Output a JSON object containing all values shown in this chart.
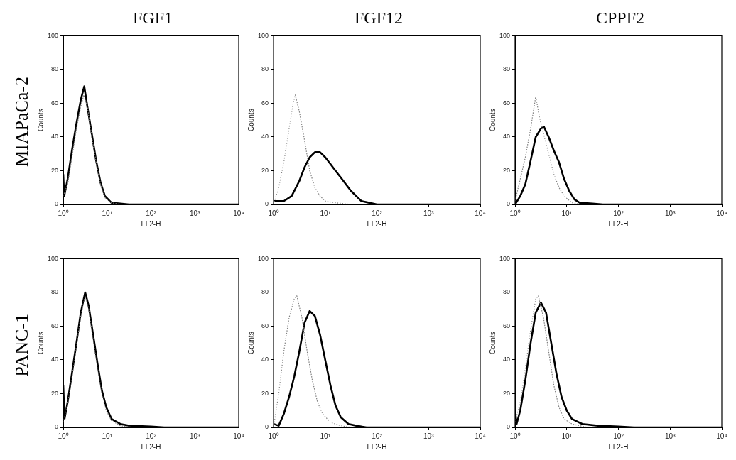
{
  "chart_data": [
    {
      "type": "line",
      "title": "FGF1",
      "annotations": [
        "MIAPaCa-2"
      ],
      "xlabel": "FL2-H",
      "ylabel": "Counts",
      "log": "x",
      "grid": false,
      "marker": "none",
      "xlim": [
        1,
        10000
      ],
      "xticks": [
        {
          "value": 1,
          "label": "10⁰"
        },
        {
          "value": 10,
          "label": "10¹"
        },
        {
          "value": 100,
          "label": "10²"
        },
        {
          "value": 1000,
          "label": "10³"
        },
        {
          "value": 10000,
          "label": "10⁴"
        }
      ],
      "ylim": [
        0,
        100
      ],
      "yticks": [
        0,
        20,
        40,
        60,
        80,
        100
      ],
      "series": [
        {
          "color": "#808080",
          "line_style": "dotted",
          "x": [
            1,
            1.26,
            1.58,
            2.0,
            2.51,
            2.95,
            3.55,
            4.47,
            5.62,
            7.08,
            8.91,
            12.6,
            20,
            10000
          ],
          "values": [
            5,
            12,
            28,
            45,
            58,
            65,
            58,
            40,
            25,
            12,
            4,
            1,
            0,
            0
          ]
        },
        {
          "color": "#000000",
          "line_style": "solid",
          "x": [
            1,
            1.05,
            1.26,
            1.58,
            2.0,
            2.51,
            3.02,
            3.55,
            4.47,
            5.62,
            7.08,
            8.91,
            12.6,
            20,
            31.6,
            10000
          ],
          "values": [
            18,
            5,
            15,
            32,
            48,
            62,
            70,
            58,
            42,
            26,
            13,
            5,
            1,
            0.5,
            0,
            0
          ]
        }
      ]
    },
    {
      "type": "line",
      "title": "FGF12",
      "xlabel": "FL2-H",
      "ylabel": "Counts",
      "log": "x",
      "grid": false,
      "marker": "none",
      "xlim": [
        1,
        10000
      ],
      "xticks": [
        {
          "value": 1,
          "label": "10⁰"
        },
        {
          "value": 10,
          "label": "10¹"
        },
        {
          "value": 100,
          "label": "10²"
        },
        {
          "value": 1000,
          "label": "10³"
        },
        {
          "value": 10000,
          "label": "10⁴"
        }
      ],
      "ylim": [
        0,
        100
      ],
      "yticks": [
        0,
        20,
        40,
        60,
        80,
        100
      ],
      "series": [
        {
          "color": "#808080",
          "line_style": "dotted",
          "x": [
            1,
            1.26,
            1.58,
            2.0,
            2.4,
            2.63,
            3.16,
            3.98,
            5.01,
            6.31,
            7.94,
            10,
            15.8,
            31.6,
            10000
          ],
          "values": [
            0,
            10,
            25,
            45,
            60,
            65,
            55,
            38,
            20,
            10,
            5,
            2,
            1,
            0,
            0
          ]
        },
        {
          "color": "#000000",
          "line_style": "solid",
          "x": [
            1,
            1.58,
            2.24,
            3.16,
            3.98,
            5.01,
            6.31,
            7.94,
            10,
            12.6,
            15.8,
            20,
            25.1,
            31.6,
            39.8,
            50.1,
            70.8,
            100,
            10000
          ],
          "values": [
            2,
            2,
            5,
            14,
            22,
            28,
            31,
            31,
            28,
            24,
            20,
            16,
            12,
            8,
            5,
            2,
            1,
            0,
            0
          ]
        }
      ]
    },
    {
      "type": "line",
      "title": "CPPF2",
      "xlabel": "FL2-H",
      "ylabel": "Counts",
      "log": "x",
      "grid": false,
      "marker": "none",
      "xlim": [
        1,
        10000
      ],
      "xticks": [
        {
          "value": 1,
          "label": "10⁰"
        },
        {
          "value": 10,
          "label": "10¹"
        },
        {
          "value": 100,
          "label": "10²"
        },
        {
          "value": 1000,
          "label": "10³"
        },
        {
          "value": 10000,
          "label": "10⁴"
        }
      ],
      "ylim": [
        0,
        100
      ],
      "yticks": [
        0,
        20,
        40,
        60,
        80,
        100
      ],
      "series": [
        {
          "color": "#808080",
          "line_style": "dotted",
          "x": [
            1,
            1.26,
            1.58,
            2.0,
            2.51,
            2.95,
            3.55,
            4.47,
            5.62,
            7.08,
            8.91,
            12.6,
            20,
            10000
          ],
          "values": [
            2,
            15,
            28,
            45,
            64,
            52,
            42,
            30,
            18,
            10,
            5,
            1,
            0,
            0
          ]
        },
        {
          "color": "#000000",
          "line_style": "solid",
          "x": [
            1,
            1.26,
            1.58,
            2.0,
            2.51,
            3.16,
            3.63,
            4.47,
            5.62,
            7.08,
            8.91,
            11.2,
            14.1,
            17.8,
            31.6,
            50.1,
            10000
          ],
          "values": [
            0,
            5,
            12,
            26,
            40,
            45,
            46,
            40,
            32,
            25,
            15,
            8,
            3,
            1,
            0.5,
            0,
            0
          ]
        }
      ]
    },
    {
      "type": "line",
      "annotations": [
        "PANC-1"
      ],
      "xlabel": "FL2-H",
      "ylabel": "Counts",
      "log": "x",
      "grid": false,
      "marker": "none",
      "xlim": [
        1,
        10000
      ],
      "xticks": [
        {
          "value": 1,
          "label": "10⁰"
        },
        {
          "value": 10,
          "label": "10¹"
        },
        {
          "value": 100,
          "label": "10²"
        },
        {
          "value": 1000,
          "label": "10³"
        },
        {
          "value": 10000,
          "label": "10⁴"
        }
      ],
      "ylim": [
        0,
        100
      ],
      "yticks": [
        0,
        20,
        40,
        60,
        80,
        100
      ],
      "series": [
        {
          "color": "#808080",
          "line_style": "dotted",
          "x": [
            1,
            1.26,
            1.58,
            2.0,
            2.51,
            3.16,
            3.8,
            4.79,
            6.03,
            7.59,
            9.55,
            12.6,
            20,
            39.8,
            10000
          ],
          "values": [
            3,
            14,
            30,
            48,
            66,
            78,
            70,
            52,
            35,
            20,
            10,
            4,
            1,
            0,
            0
          ]
        },
        {
          "color": "#000000",
          "line_style": "solid",
          "x": [
            1,
            1.07,
            1.26,
            1.58,
            2.0,
            2.51,
            3.16,
            3.8,
            4.79,
            6.03,
            7.59,
            9.55,
            12.6,
            20,
            31.6,
            100,
            200,
            10000
          ],
          "values": [
            25,
            5,
            15,
            32,
            50,
            68,
            80,
            72,
            55,
            38,
            22,
            12,
            5,
            2,
            1,
            0.5,
            0,
            0
          ]
        }
      ]
    },
    {
      "type": "line",
      "xlabel": "FL2-H",
      "ylabel": "Counts",
      "log": "x",
      "grid": false,
      "marker": "none",
      "xlim": [
        1,
        10000
      ],
      "xticks": [
        {
          "value": 1,
          "label": "10⁰"
        },
        {
          "value": 10,
          "label": "10¹"
        },
        {
          "value": 100,
          "label": "10²"
        },
        {
          "value": 1000,
          "label": "10³"
        },
        {
          "value": 10000,
          "label": "10⁴"
        }
      ],
      "ylim": [
        0,
        100
      ],
      "yticks": [
        0,
        20,
        40,
        60,
        80,
        100
      ],
      "series": [
        {
          "color": "#808080",
          "line_style": "dotted",
          "x": [
            1,
            1.26,
            1.58,
            2.0,
            2.51,
            2.82,
            3.55,
            4.47,
            5.62,
            7.08,
            8.91,
            12.6,
            20,
            31.6,
            10000
          ],
          "values": [
            0,
            20,
            45,
            65,
            76,
            78,
            65,
            45,
            28,
            15,
            8,
            3,
            1,
            0,
            0
          ]
        },
        {
          "color": "#000000",
          "line_style": "solid",
          "x": [
            1,
            1.26,
            1.58,
            2.0,
            2.51,
            3.16,
            3.98,
            5.01,
            6.31,
            7.94,
            10,
            12.6,
            15.8,
            20,
            28.2,
            39.8,
            63.1,
            10000
          ],
          "values": [
            2,
            1,
            8,
            18,
            30,
            45,
            62,
            69,
            66,
            55,
            40,
            25,
            13,
            6,
            2,
            1,
            0,
            0
          ]
        }
      ]
    },
    {
      "type": "line",
      "xlabel": "FL2-H",
      "ylabel": "Counts",
      "log": "x",
      "grid": false,
      "marker": "none",
      "xlim": [
        1,
        10000
      ],
      "xticks": [
        {
          "value": 1,
          "label": "10⁰"
        },
        {
          "value": 10,
          "label": "10¹"
        },
        {
          "value": 100,
          "label": "10²"
        },
        {
          "value": 1000,
          "label": "10³"
        },
        {
          "value": 10000,
          "label": "10⁴"
        }
      ],
      "ylim": [
        0,
        100
      ],
      "yticks": [
        0,
        20,
        40,
        60,
        80,
        100
      ],
      "series": [
        {
          "color": "#808080",
          "line_style": "dotted",
          "x": [
            1,
            1.26,
            1.58,
            2.0,
            2.51,
            2.82,
            3.55,
            4.47,
            5.62,
            7.08,
            8.91,
            12.6,
            25.1,
            10000
          ],
          "values": [
            3,
            15,
            35,
            58,
            76,
            78,
            65,
            45,
            25,
            12,
            5,
            2,
            0,
            0
          ]
        },
        {
          "color": "#000000",
          "line_style": "solid",
          "x": [
            1,
            1.07,
            1.26,
            1.58,
            2.0,
            2.51,
            3.16,
            3.98,
            5.01,
            6.31,
            7.94,
            10,
            12.6,
            20,
            39.8,
            100,
            200,
            10000
          ],
          "values": [
            10,
            2,
            10,
            28,
            50,
            68,
            74,
            68,
            50,
            32,
            18,
            10,
            5,
            2,
            1,
            0.5,
            0,
            0
          ]
        }
      ]
    }
  ]
}
